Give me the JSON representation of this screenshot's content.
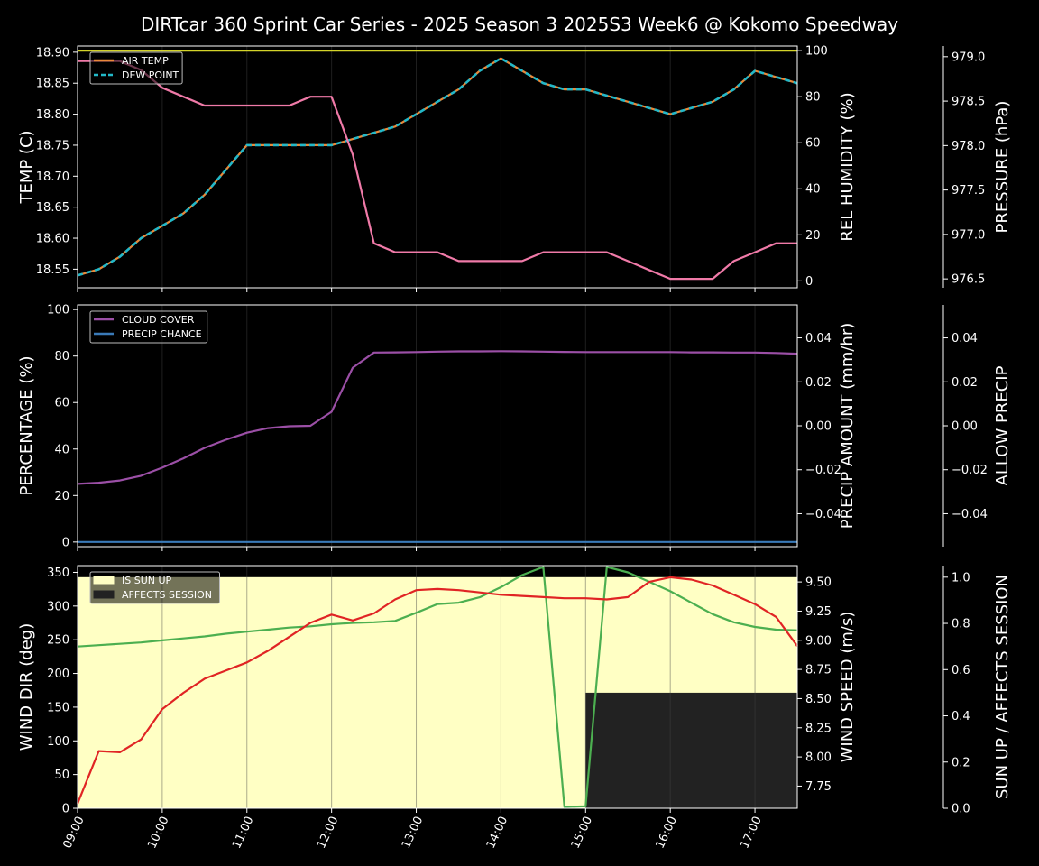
{
  "chart_data": {
    "title": "DIRTcar 360 Sprint Car Series - 2025 Season 3 2025S3 Week6 @ Kokomo Speedway",
    "time_ticks": [
      "09:00",
      "10:00",
      "11:00",
      "12:00",
      "13:00",
      "14:00",
      "15:00",
      "16:00",
      "17:00"
    ],
    "times": [
      "09:00",
      "09:15",
      "09:30",
      "09:45",
      "10:00",
      "10:15",
      "10:30",
      "10:45",
      "11:00",
      "11:15",
      "11:30",
      "11:45",
      "12:00",
      "12:15",
      "12:30",
      "12:45",
      "13:00",
      "13:15",
      "13:30",
      "13:45",
      "14:00",
      "14:15",
      "14:30",
      "14:45",
      "15:00",
      "15:15",
      "15:30",
      "15:45",
      "16:00",
      "16:15",
      "16:30",
      "16:45",
      "17:00",
      "17:15",
      "17:30"
    ],
    "panels": [
      {
        "type": "line",
        "left_axis": {
          "label": "TEMP (C)",
          "color": "#ffffff",
          "ylim": [
            18.52,
            18.91
          ],
          "ticks": [
            "18.55",
            "18.60",
            "18.65",
            "18.70",
            "18.75",
            "18.80",
            "18.85",
            "18.90"
          ]
        },
        "right_axis": {
          "label": "REL HUMIDITY (%)",
          "color": "#d4d42a",
          "ylim": [
            -3,
            102
          ],
          "ticks": [
            "0",
            "20",
            "40",
            "60",
            "80",
            "100"
          ]
        },
        "far_axis": {
          "label": "PRESSURE (hPa)",
          "color": "#f07aa8",
          "ylim": [
            976.4,
            979.12
          ],
          "ticks": [
            "976.5",
            "977.0",
            "977.5",
            "978.0",
            "978.5",
            "979.0"
          ]
        },
        "legend": [
          {
            "label": "AIR TEMP",
            "color": "#e8883a",
            "style": "solid"
          },
          {
            "label": "DEW POINT",
            "color": "#22b8c8",
            "style": "dashed"
          }
        ],
        "series": [
          {
            "name": "AIR TEMP",
            "axis": "left",
            "color": "#e8883a",
            "dashed": false,
            "values": [
              18.54,
              18.55,
              18.57,
              18.6,
              18.62,
              18.64,
              18.67,
              18.71,
              18.75,
              18.75,
              18.75,
              18.75,
              18.75,
              18.76,
              18.77,
              18.78,
              18.8,
              18.82,
              18.84,
              18.87,
              18.89,
              18.87,
              18.85,
              18.84,
              18.84,
              18.83,
              18.82,
              18.81,
              18.8,
              18.81,
              18.82,
              18.84,
              18.87,
              18.86,
              18.85
            ]
          },
          {
            "name": "DEW POINT",
            "axis": "left",
            "color": "#22b8c8",
            "dashed": true,
            "values": [
              18.54,
              18.55,
              18.57,
              18.6,
              18.62,
              18.64,
              18.67,
              18.71,
              18.75,
              18.75,
              18.75,
              18.75,
              18.75,
              18.76,
              18.77,
              18.78,
              18.8,
              18.82,
              18.84,
              18.87,
              18.89,
              18.87,
              18.85,
              18.84,
              18.84,
              18.83,
              18.82,
              18.81,
              18.8,
              18.81,
              18.82,
              18.84,
              18.87,
              18.86,
              18.85
            ]
          },
          {
            "axis": "right",
            "color": "#d4d42a",
            "dashed": false,
            "values": [
              100,
              100,
              100,
              100,
              100,
              100,
              100,
              100,
              100,
              100,
              100,
              100,
              100,
              100,
              100,
              100,
              100,
              100,
              100,
              100,
              100,
              100,
              100,
              100,
              100,
              100,
              100,
              100,
              100,
              100,
              100,
              100,
              100,
              100,
              100
            ]
          },
          {
            "axis": "far",
            "color": "#f07aa8",
            "dashed": false,
            "values": [
              978.95,
              978.95,
              978.95,
              978.85,
              978.65,
              978.55,
              978.45,
              978.45,
              978.45,
              978.45,
              978.45,
              978.55,
              978.55,
              977.9,
              976.9,
              976.8,
              976.8,
              976.8,
              976.7,
              976.7,
              976.7,
              976.7,
              976.8,
              976.8,
              976.8,
              976.8,
              976.7,
              976.6,
              976.5,
              976.5,
              976.5,
              976.7,
              976.8,
              976.9,
              976.9
            ]
          }
        ]
      },
      {
        "type": "line",
        "left_axis": {
          "label": "PERCENTAGE (%)",
          "color": "#ffffff",
          "ylim": [
            -2,
            102
          ],
          "ticks": [
            "0",
            "20",
            "40",
            "60",
            "80",
            "100"
          ]
        },
        "right_axis": {
          "label": "PRECIP AMOUNT (mm/hr)",
          "color": "#a0522d",
          "ylim": [
            -0.055,
            0.055
          ],
          "ticks": [
            "−0.04",
            "−0.02",
            "0.00",
            "0.02",
            "0.04"
          ]
        },
        "far_axis": {
          "label": "ALLOW PRECIP",
          "color": "#ffffff",
          "ylim": [
            -0.055,
            0.055
          ],
          "ticks": [
            "−0.04",
            "−0.02",
            "0.00",
            "0.02",
            "0.04"
          ]
        },
        "legend": [
          {
            "label": "CLOUD COVER",
            "color": "#9b4fa6",
            "style": "solid"
          },
          {
            "label": "PRECIP CHANCE",
            "color": "#3a7ab8",
            "style": "solid"
          }
        ],
        "series": [
          {
            "name": "CLOUD COVER",
            "axis": "left",
            "color": "#9b4fa6",
            "dashed": false,
            "values": [
              25,
              25.5,
              26.5,
              28.5,
              32,
              36,
              40.5,
              44,
              47,
              49,
              49.8,
              50,
              56,
              75,
              81.5,
              81.6,
              81.7,
              81.9,
              82,
              82,
              82.1,
              82,
              81.9,
              81.8,
              81.7,
              81.7,
              81.7,
              81.7,
              81.7,
              81.6,
              81.6,
              81.5,
              81.5,
              81.3,
              81
            ]
          },
          {
            "name": "PRECIP CHANCE",
            "axis": "left",
            "color": "#3a7ab8",
            "dashed": false,
            "values": [
              0,
              0,
              0,
              0,
              0,
              0,
              0,
              0,
              0,
              0,
              0,
              0,
              0,
              0,
              0,
              0,
              0,
              0,
              0,
              0,
              0,
              0,
              0,
              0,
              0,
              0,
              0,
              0,
              0,
              0,
              0,
              0,
              0,
              0,
              0
            ]
          }
        ]
      },
      {
        "type": "line",
        "left_axis": {
          "label": "WIND DIR (deg)",
          "color": "#4caf50",
          "ylim": [
            0,
            360
          ],
          "ticks": [
            "0",
            "50",
            "100",
            "150",
            "200",
            "250",
            "300",
            "350"
          ]
        },
        "right_axis": {
          "label": "WIND SPEED (m/s)",
          "color": "#e02424",
          "ylim": [
            7.56,
            9.64
          ],
          "ticks": [
            "7.75",
            "8.00",
            "8.25",
            "8.50",
            "8.75",
            "9.00",
            "9.25",
            "9.50"
          ]
        },
        "far_axis": {
          "label": "SUN UP / AFFECTS SESSION",
          "color": "#ffffff",
          "ylim": [
            0,
            1.05
          ],
          "ticks": [
            "0.0",
            "0.2",
            "0.4",
            "0.6",
            "0.8",
            "1.0"
          ]
        },
        "legend": [
          {
            "label": "IS SUN UP",
            "color": "#ffffc4",
            "style": "patch"
          },
          {
            "label": "AFFECTS SESSION",
            "color": "#222222",
            "style": "patch"
          }
        ],
        "sun_up": {
          "value": 1,
          "from": "09:00",
          "to": "17:30",
          "color": "#ffffc4"
        },
        "affects_session": {
          "value": 0.5,
          "from": "15:00",
          "to": "17:30",
          "color": "#222222"
        },
        "series": [
          {
            "name": "WIND DIR",
            "axis": "left",
            "color": "#4caf50",
            "dashed": false,
            "values": [
              240,
              242,
              244,
              246,
              249,
              252,
              255,
              259,
              262,
              265,
              268,
              270,
              273,
              275,
              276,
              278,
              290,
              303,
              305,
              313,
              328,
              346,
              358,
              2,
              3,
              358,
              350,
              336,
              322,
              305,
              288,
              276,
              269,
              265,
              264
            ]
          },
          {
            "name": "WIND SPEED",
            "axis": "right",
            "color": "#e02424",
            "dashed": false,
            "values": [
              7.6,
              8.05,
              8.04,
              8.15,
              8.41,
              8.55,
              8.67,
              8.74,
              8.81,
              8.91,
              9.03,
              9.15,
              9.22,
              9.17,
              9.23,
              9.35,
              9.43,
              9.44,
              9.43,
              9.41,
              9.39,
              9.38,
              9.37,
              9.36,
              9.36,
              9.35,
              9.37,
              9.5,
              9.54,
              9.52,
              9.47,
              9.39,
              9.31,
              9.2,
              8.95
            ]
          }
        ]
      }
    ]
  }
}
